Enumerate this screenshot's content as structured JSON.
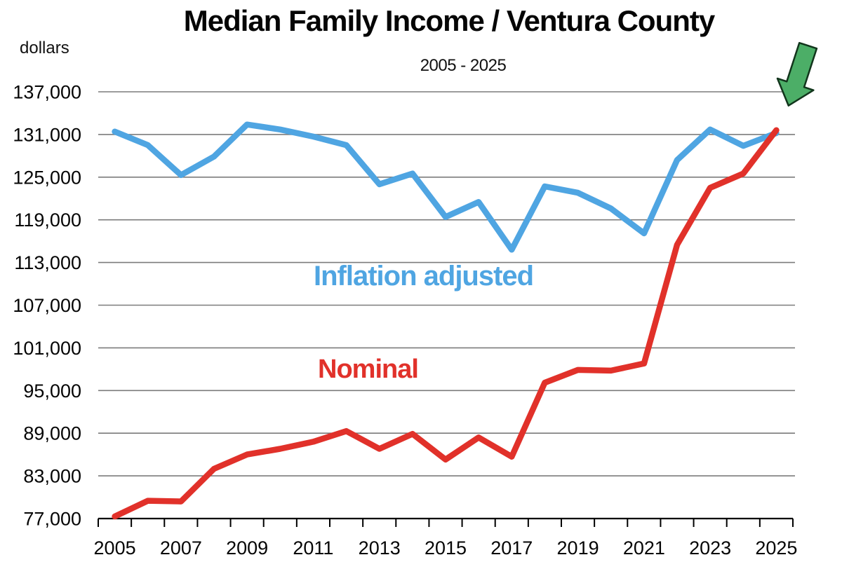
{
  "page": {
    "title": "Median Family Income / Ventura County",
    "subtitle": "2005 - 2025",
    "y_axis_unit": "dollars"
  },
  "labels": {
    "blue_series": "Inflation adjusted",
    "red_series": "Nominal"
  },
  "colors": {
    "blue_line": "#4FA5E2",
    "red_line": "#E1312A",
    "arrow_green_fill": "#4CAE67",
    "arrow_outline": "#12351c",
    "gridline": "#7b7b7b",
    "axis": "#000000",
    "text": "#050505"
  },
  "annotations": {
    "green_arrow": "green arrow pointing at 2025 endpoint of the lines"
  },
  "chart_data": {
    "type": "line",
    "title": "Median Family Income / Ventura County",
    "subtitle": "2005 - 2025",
    "ylabel": "dollars",
    "xlabel": "",
    "grid": true,
    "legend_position": "inline-labels",
    "ylim": [
      77000,
      137000
    ],
    "y_ticks": [
      137000,
      131000,
      125000,
      119000,
      113000,
      107000,
      101000,
      95000,
      89000,
      83000,
      77000
    ],
    "y_tick_labels": [
      "137,000",
      "131,000",
      "125,000",
      "119,000",
      "113,000",
      "107,000",
      "101,000",
      "95,000",
      "89,000",
      "83,000",
      "77,000"
    ],
    "x": [
      2005,
      2006,
      2007,
      2008,
      2009,
      2010,
      2011,
      2012,
      2013,
      2014,
      2015,
      2016,
      2017,
      2018,
      2019,
      2020,
      2021,
      2022,
      2023,
      2024,
      2025
    ],
    "x_tick_labels": [
      "2005",
      "2007",
      "2009",
      "2011",
      "2013",
      "2015",
      "2017",
      "2019",
      "2021",
      "2023",
      "2025"
    ],
    "series": [
      {
        "name": "Inflation adjusted",
        "color": "#4FA5E2",
        "values": [
          131400,
          129500,
          125300,
          127900,
          132400,
          131700,
          130700,
          129500,
          124000,
          125500,
          119400,
          121500,
          114800,
          123700,
          122800,
          120600,
          117100,
          127400,
          131700,
          129400,
          131200
        ]
      },
      {
        "name": "Nominal",
        "color": "#E1312A",
        "values": [
          77300,
          79500,
          79400,
          84000,
          86000,
          86800,
          87800,
          89300,
          86800,
          88900,
          85300,
          88400,
          85700,
          96100,
          97900,
          97800,
          98800,
          115500,
          123500,
          125500,
          131600
        ]
      }
    ]
  }
}
